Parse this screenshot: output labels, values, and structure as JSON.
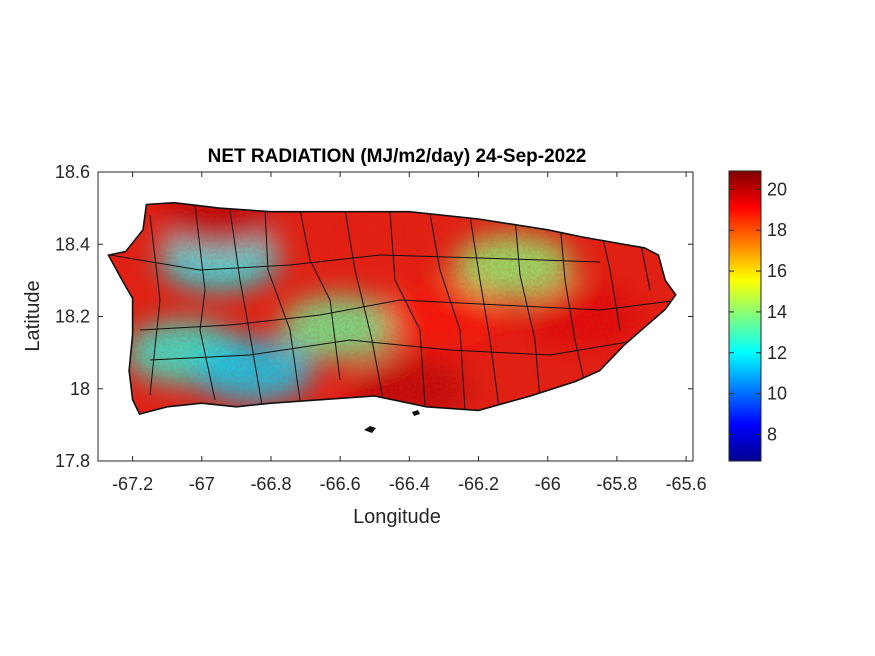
{
  "chart_data": {
    "type": "heatmap",
    "title": "NET RADIATION (MJ/m2/day) 24-Sep-2022",
    "xlabel": "Longitude",
    "ylabel": "Latitude",
    "xlim": [
      -67.3,
      -65.58
    ],
    "ylim": [
      17.8,
      18.6
    ],
    "x_ticks": [
      "-67.2",
      "-67",
      "-66.8",
      "-66.6",
      "-66.4",
      "-66.2",
      "-66",
      "-65.8",
      "-65.6"
    ],
    "x_tick_values": [
      -67.2,
      -67.0,
      -66.8,
      -66.6,
      -66.4,
      -66.2,
      -66.0,
      -65.8,
      -65.6
    ],
    "y_ticks": [
      "17.8",
      "18",
      "18.2",
      "18.4",
      "18.6"
    ],
    "y_tick_values": [
      17.8,
      18.0,
      18.2,
      18.4,
      18.6
    ],
    "colorbar": {
      "colormap": "jet",
      "range": [
        6.7,
        20.9
      ],
      "tick_labels": [
        "8",
        "10",
        "12",
        "14",
        "16",
        "18",
        "20"
      ],
      "tick_values": [
        8,
        10,
        12,
        14,
        16,
        18,
        20
      ]
    },
    "grid": false,
    "island_outline": [
      [
        -67.27,
        18.37
      ],
      [
        -67.22,
        18.38
      ],
      [
        -67.17,
        18.44
      ],
      [
        -67.16,
        18.51
      ],
      [
        -67.08,
        18.515
      ],
      [
        -66.95,
        18.5
      ],
      [
        -66.8,
        18.49
      ],
      [
        -66.6,
        18.49
      ],
      [
        -66.4,
        18.49
      ],
      [
        -66.2,
        18.47
      ],
      [
        -66.0,
        18.44
      ],
      [
        -65.9,
        18.42
      ],
      [
        -65.78,
        18.4
      ],
      [
        -65.72,
        18.39
      ],
      [
        -65.68,
        18.37
      ],
      [
        -65.66,
        18.3
      ],
      [
        -65.63,
        18.26
      ],
      [
        -65.66,
        18.22
      ],
      [
        -65.72,
        18.17
      ],
      [
        -65.78,
        18.12
      ],
      [
        -65.85,
        18.05
      ],
      [
        -65.92,
        18.02
      ],
      [
        -66.05,
        17.98
      ],
      [
        -66.2,
        17.94
      ],
      [
        -66.35,
        17.95
      ],
      [
        -66.5,
        17.98
      ],
      [
        -66.65,
        17.97
      ],
      [
        -66.8,
        17.96
      ],
      [
        -66.9,
        17.95
      ],
      [
        -67.0,
        17.96
      ],
      [
        -67.1,
        17.95
      ],
      [
        -67.18,
        17.93
      ],
      [
        -67.2,
        17.97
      ],
      [
        -67.21,
        18.05
      ],
      [
        -67.2,
        18.15
      ],
      [
        -67.2,
        18.25
      ],
      [
        -67.23,
        18.3
      ],
      [
        -67.27,
        18.37
      ]
    ],
    "value_regions": [
      {
        "lon": -66.95,
        "lat": 18.36,
        "value": 12.0
      },
      {
        "lon": -67.05,
        "lat": 18.1,
        "value": 12.5
      },
      {
        "lon": -66.6,
        "lat": 18.17,
        "value": 13.5
      },
      {
        "lon": -66.85,
        "lat": 18.05,
        "value": 11.5
      },
      {
        "lon": -66.1,
        "lat": 18.34,
        "value": 14.0
      },
      {
        "lon": -66.95,
        "lat": 18.47,
        "value": 20.0
      },
      {
        "lon": -66.3,
        "lat": 18.2,
        "value": 19.0
      },
      {
        "lon": -65.9,
        "lat": 18.2,
        "value": 19.5
      },
      {
        "lon": -66.4,
        "lat": 18.0,
        "value": 20.0
      }
    ]
  }
}
